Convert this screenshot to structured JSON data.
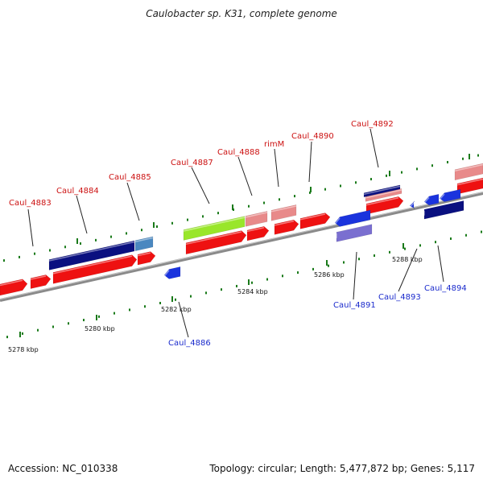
{
  "title": "Caulobacter sp. K31, complete genome",
  "footer": {
    "accession": "Accession: NC_010338",
    "summary": "Topology: circular; Length: 5,477,872 bp; Genes: 5,117"
  },
  "colors": {
    "forward_gene": "#ee1111",
    "forward_pseudo": "#e88a8a",
    "reverse_gene": "#1a33dd",
    "navy": "#0a1080",
    "steel": "#4a88c0",
    "lime": "#99e62a",
    "lavender": "#7a6fd0",
    "tick": "#1a7a1a",
    "backbone": "#8a8a8a",
    "label_forward": "#cc1111",
    "label_reverse": "#1a2acc"
  },
  "scale_labels": [
    "5278 kbp",
    "5280 kbp",
    "5282 kbp",
    "5284 kbp",
    "5286 kbp",
    "5288 kbp"
  ],
  "labels_forward": [
    "Caul_4883",
    "Caul_4884",
    "Caul_4885",
    "Caul_4887",
    "Caul_4888",
    "rimM",
    "Caul_4890",
    "Caul_4892"
  ],
  "labels_reverse": [
    "Caul_4886",
    "Caul_4891",
    "Caul_4893",
    "Caul_4894"
  ]
}
